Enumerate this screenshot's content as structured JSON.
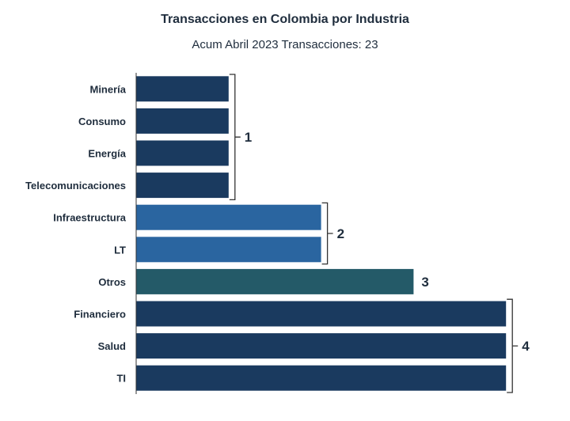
{
  "chart_data": {
    "type": "bar",
    "orientation": "horizontal",
    "title": "Transacciones en Colombia por Industria",
    "subtitle": "Acum Abril 2023 Transacciones: 23",
    "xlabel": "",
    "ylabel": "",
    "xlim": [
      0,
      4
    ],
    "grid": false,
    "categories": [
      "Minería",
      "Consumo",
      "Energía",
      "Telecomunicaciones",
      "Infraestructura",
      "LT",
      "Otros",
      "Financiero",
      "Salud",
      "TI"
    ],
    "values": [
      1,
      1,
      1,
      1,
      2,
      2,
      3,
      4,
      4,
      4
    ],
    "group_labels": [
      "1",
      "2",
      "3",
      "4"
    ],
    "colors": {
      "1": "#1a3a5f",
      "2": "#2a65a0",
      "3": "#245a68",
      "4": "#1a3a5f",
      "text": "#1f2d3d",
      "axis": "#333333"
    }
  }
}
